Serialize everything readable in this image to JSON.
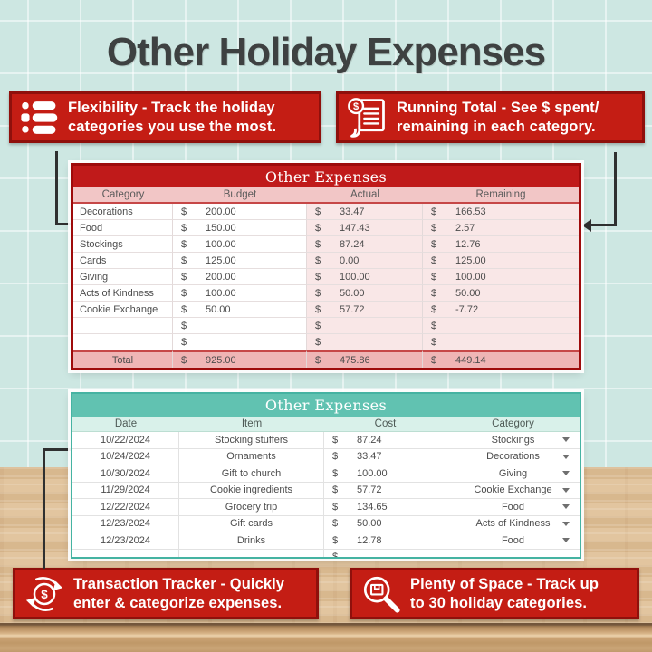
{
  "title": "Other Holiday Expenses",
  "callouts": {
    "flexibility": {
      "icon": "list-icon",
      "line1": "Flexibility - Track the holiday",
      "line2": "categories you use the most."
    },
    "running_total": {
      "icon": "receipt-dollar-icon",
      "line1": "Running Total - See $ spent/",
      "line2": "remaining in each category."
    },
    "transaction_tracker": {
      "icon": "dollar-cycle-icon",
      "line1": "Transaction Tracker - Quickly",
      "line2": "enter & categorize expenses."
    },
    "plenty_of_space": {
      "icon": "magnifier-box-icon",
      "line1": "Plenty of Space - Track up",
      "line2": "to 30 holiday categories."
    }
  },
  "budget_table": {
    "title": "Other Expenses",
    "currency": "$",
    "columns": [
      "Category",
      "Budget",
      "Actual",
      "Remaining"
    ],
    "rows": [
      {
        "category": "Decorations",
        "budget": "200.00",
        "actual": "33.47",
        "remaining": "166.53"
      },
      {
        "category": "Food",
        "budget": "150.00",
        "actual": "147.43",
        "remaining": "2.57"
      },
      {
        "category": "Stockings",
        "budget": "100.00",
        "actual": "87.24",
        "remaining": "12.76"
      },
      {
        "category": "Cards",
        "budget": "125.00",
        "actual": "0.00",
        "remaining": "125.00"
      },
      {
        "category": "Giving",
        "budget": "200.00",
        "actual": "100.00",
        "remaining": "100.00"
      },
      {
        "category": "Acts of Kindness",
        "budget": "100.00",
        "actual": "50.00",
        "remaining": "50.00"
      },
      {
        "category": "Cookie Exchange",
        "budget": "50.00",
        "actual": "57.72",
        "remaining": "-7.72"
      },
      {
        "category": "",
        "budget": "",
        "actual": "",
        "remaining": ""
      },
      {
        "category": "",
        "budget": "",
        "actual": "",
        "remaining": ""
      }
    ],
    "total": {
      "label": "Total",
      "budget": "925.00",
      "actual": "475.86",
      "remaining": "449.14"
    }
  },
  "transactions_table": {
    "title": "Other Expenses",
    "currency": "$",
    "columns": [
      "Date",
      "Item",
      "Cost",
      "Category"
    ],
    "rows": [
      {
        "date": "10/22/2024",
        "item": "Stocking stuffers",
        "cost": "87.24",
        "category": "Stockings"
      },
      {
        "date": "10/24/2024",
        "item": "Ornaments",
        "cost": "33.47",
        "category": "Decorations"
      },
      {
        "date": "10/30/2024",
        "item": "Gift to church",
        "cost": "100.00",
        "category": "Giving"
      },
      {
        "date": "11/29/2024",
        "item": "Cookie ingredients",
        "cost": "57.72",
        "category": "Cookie Exchange"
      },
      {
        "date": "12/22/2024",
        "item": "Grocery trip",
        "cost": "134.65",
        "category": "Food"
      },
      {
        "date": "12/23/2024",
        "item": "Gift cards",
        "cost": "50.00",
        "category": "Acts of Kindness"
      },
      {
        "date": "12/23/2024",
        "item": "Drinks",
        "cost": "12.78",
        "category": "Food"
      },
      {
        "date": "",
        "item": "",
        "cost": "",
        "category": ""
      }
    ]
  },
  "colors": {
    "brand_red": "#c41d14",
    "border_red": "#8f100c",
    "table_red": "#c01a1a",
    "pink_header": "#f2c6c6",
    "pink_cell": "#f9e7e7",
    "pink_total": "#efb5b5",
    "teal": "#61c2b1",
    "mint_header": "#d9f1ea",
    "background": "#cde7e2",
    "wood": "#e0c198",
    "title_text": "#3e4141"
  }
}
